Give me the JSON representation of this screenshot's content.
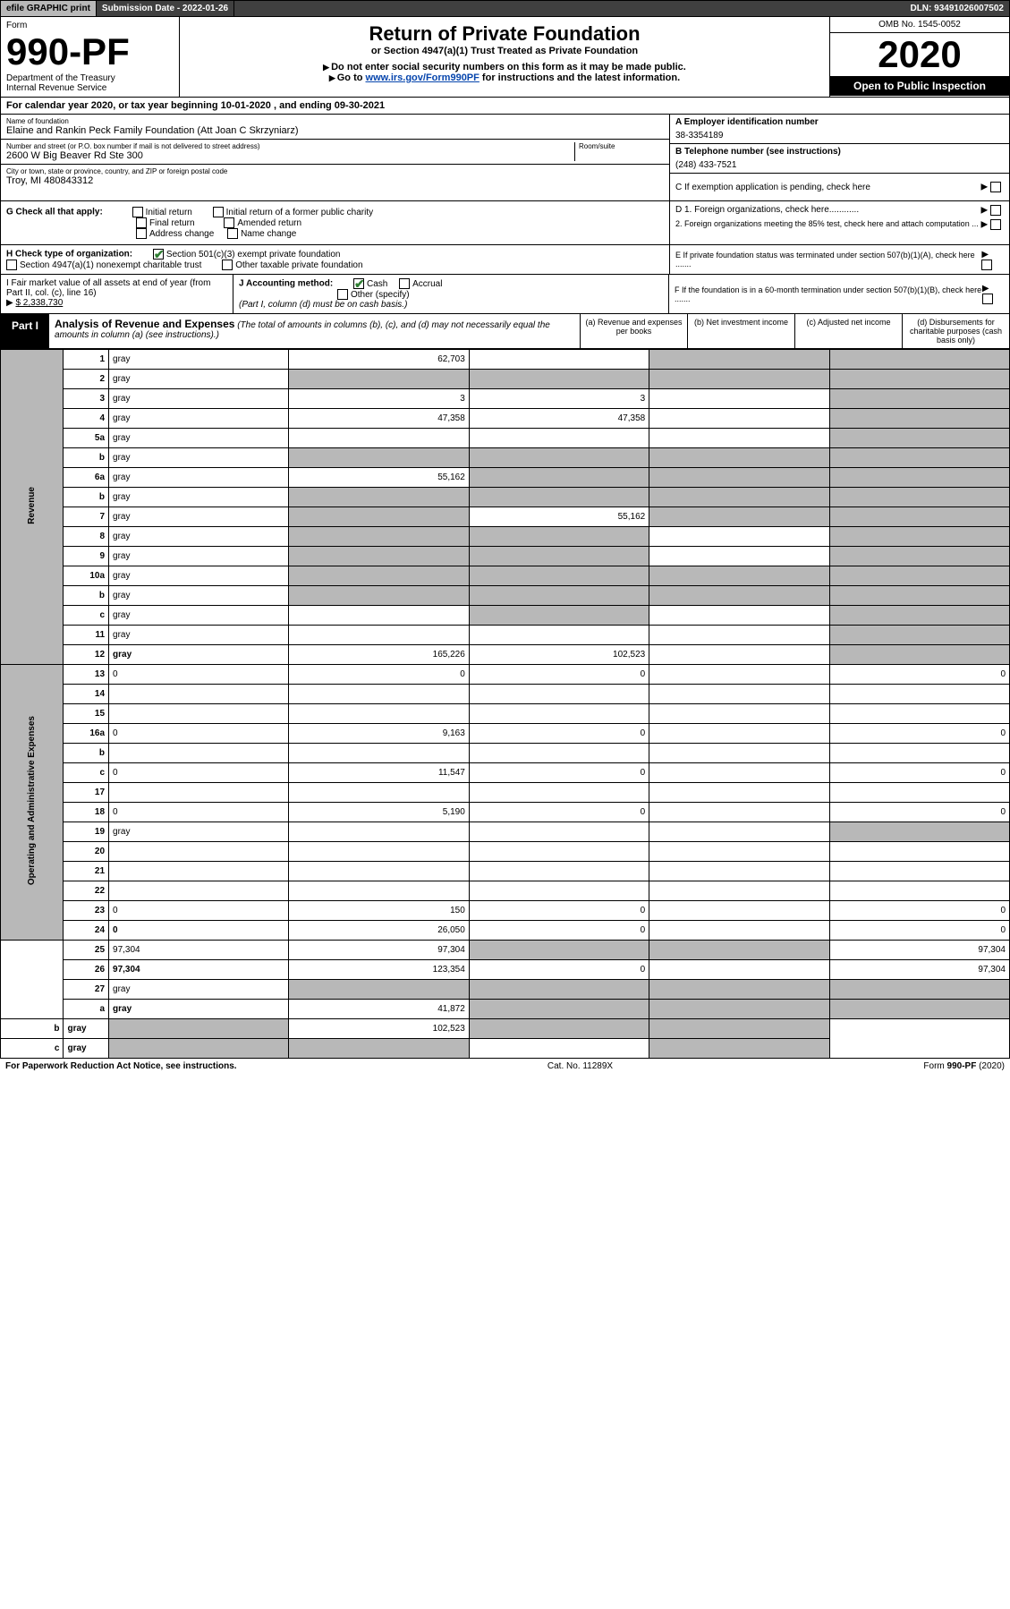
{
  "topbar": {
    "efile": "efile GRAPHIC print",
    "sub_lbl": "Submission Date - 2022-01-26",
    "dln": "DLN: 93491026007502"
  },
  "hdr": {
    "form_word": "Form",
    "form_num": "990-PF",
    "dept": "Department of the Treasury",
    "irs": "Internal Revenue Service",
    "title": "Return of Private Foundation",
    "subtitle": "or Section 4947(a)(1) Trust Treated as Private Foundation",
    "warn1": "Do not enter social security numbers on this form as it may be made public.",
    "warn2_a": "Go to ",
    "warn2_link": "www.irs.gov/Form990PF",
    "warn2_b": " for instructions and the latest information.",
    "omb": "OMB No. 1545-0052",
    "year": "2020",
    "inspect": "Open to Public Inspection"
  },
  "cal": "For calendar year 2020, or tax year beginning 10-01-2020             , and ending 09-30-2021",
  "name_lbl": "Name of foundation",
  "name_val": "Elaine and Rankin Peck Family Foundation (Att Joan C Skrzyniarz)",
  "ein_lbl": "A Employer identification number",
  "ein_val": "38-3354189",
  "addr_lbl": "Number and street (or P.O. box number if mail is not delivered to street address)",
  "addr_val": "2600 W Big Beaver Rd Ste 300",
  "room_lbl": "Room/suite",
  "tel_lbl": "B Telephone number (see instructions)",
  "tel_val": "(248) 433-7521",
  "city_lbl": "City or town, state or province, country, and ZIP or foreign postal code",
  "city_val": "Troy, MI  480843312",
  "c_lbl": "C If exemption application is pending, check here",
  "g_lbl": "G Check all that apply:",
  "g_opts": [
    "Initial return",
    "Initial return of a former public charity",
    "Final return",
    "Amended return",
    "Address change",
    "Name change"
  ],
  "d1": "D 1. Foreign organizations, check here............",
  "d2": "2. Foreign organizations meeting the 85% test, check here and attach computation ...",
  "e_lbl": "E  If private foundation status was terminated under section 507(b)(1)(A), check here .......",
  "h_lbl": "H Check type of organization:",
  "h1": "Section 501(c)(3) exempt private foundation",
  "h2": "Section 4947(a)(1) nonexempt charitable trust",
  "h3": "Other taxable private foundation",
  "i_lbl": "I Fair market value of all assets at end of year (from Part II, col. (c), line 16)",
  "i_val": "$  2,338,730",
  "j_lbl": "J Accounting method:",
  "j1": "Cash",
  "j2": "Accrual",
  "j3": "Other (specify)",
  "j_note": "(Part I, column (d) must be on cash basis.)",
  "f_lbl": "F  If the foundation is in a 60-month termination under section 507(b)(1)(B), check here .......",
  "part1_tag": "Part I",
  "part1_title": "Analysis of Revenue and Expenses",
  "part1_desc": "(The total of amounts in columns (b), (c), and (d) may not necessarily equal the amounts in column (a) (see instructions).)",
  "cols": {
    "a": "(a) Revenue and expenses per books",
    "b": "(b) Net investment income",
    "c": "(c) Adjusted net income",
    "d": "(d) Disbursements for charitable purposes (cash basis only)"
  },
  "side_rev": "Revenue",
  "side_op": "Operating and Administrative Expenses",
  "rows": [
    {
      "n": "1",
      "d": "gray",
      "a": "62,703",
      "b": "",
      "c": "gray"
    },
    {
      "n": "2",
      "d": "gray",
      "a": "gray",
      "b": "gray",
      "c": "gray"
    },
    {
      "n": "3",
      "d": "gray",
      "a": "3",
      "b": "3",
      "c": ""
    },
    {
      "n": "4",
      "d": "gray",
      "a": "47,358",
      "b": "47,358",
      "c": ""
    },
    {
      "n": "5a",
      "d": "gray",
      "a": "",
      "b": "",
      "c": ""
    },
    {
      "n": "b",
      "d": "gray",
      "a": "gray",
      "b": "gray",
      "c": "gray"
    },
    {
      "n": "6a",
      "d": "gray",
      "a": "55,162",
      "b": "gray",
      "c": "gray"
    },
    {
      "n": "b",
      "d": "gray",
      "a": "gray",
      "b": "gray",
      "c": "gray"
    },
    {
      "n": "7",
      "d": "gray",
      "a": "gray",
      "b": "55,162",
      "c": "gray"
    },
    {
      "n": "8",
      "d": "gray",
      "a": "gray",
      "b": "gray",
      "c": ""
    },
    {
      "n": "9",
      "d": "gray",
      "a": "gray",
      "b": "gray",
      "c": ""
    },
    {
      "n": "10a",
      "d": "gray",
      "a": "gray",
      "b": "gray",
      "c": "gray"
    },
    {
      "n": "b",
      "d": "gray",
      "a": "gray",
      "b": "gray",
      "c": "gray"
    },
    {
      "n": "c",
      "d": "gray",
      "a": "",
      "b": "gray",
      "c": ""
    },
    {
      "n": "11",
      "d": "gray",
      "a": "",
      "b": "",
      "c": ""
    },
    {
      "n": "12",
      "d": "gray",
      "a": "165,226",
      "b": "102,523",
      "c": "",
      "bold": true
    },
    {
      "n": "13",
      "d": "0",
      "a": "0",
      "b": "0",
      "c": ""
    },
    {
      "n": "14",
      "d": "",
      "a": "",
      "b": "",
      "c": ""
    },
    {
      "n": "15",
      "d": "",
      "a": "",
      "b": "",
      "c": ""
    },
    {
      "n": "16a",
      "d": "0",
      "a": "9,163",
      "b": "0",
      "c": ""
    },
    {
      "n": "b",
      "d": "",
      "a": "",
      "b": "",
      "c": ""
    },
    {
      "n": "c",
      "d": "0",
      "a": "11,547",
      "b": "0",
      "c": ""
    },
    {
      "n": "17",
      "d": "",
      "a": "",
      "b": "",
      "c": ""
    },
    {
      "n": "18",
      "d": "0",
      "a": "5,190",
      "b": "0",
      "c": ""
    },
    {
      "n": "19",
      "d": "gray",
      "a": "",
      "b": "",
      "c": ""
    },
    {
      "n": "20",
      "d": "",
      "a": "",
      "b": "",
      "c": ""
    },
    {
      "n": "21",
      "d": "",
      "a": "",
      "b": "",
      "c": ""
    },
    {
      "n": "22",
      "d": "",
      "a": "",
      "b": "",
      "c": ""
    },
    {
      "n": "23",
      "d": "0",
      "a": "150",
      "b": "0",
      "c": ""
    },
    {
      "n": "24",
      "d": "0",
      "a": "26,050",
      "b": "0",
      "c": "",
      "bold": true
    },
    {
      "n": "25",
      "d": "97,304",
      "a": "97,304",
      "b": "gray",
      "c": "gray"
    },
    {
      "n": "26",
      "d": "97,304",
      "a": "123,354",
      "b": "0",
      "c": "",
      "bold": true
    },
    {
      "n": "27",
      "d": "gray",
      "a": "gray",
      "b": "gray",
      "c": "gray"
    },
    {
      "n": "a",
      "d": "gray",
      "a": "41,872",
      "b": "gray",
      "c": "gray",
      "bold": true
    },
    {
      "n": "b",
      "d": "gray",
      "a": "gray",
      "b": "102,523",
      "c": "gray",
      "bold": true
    },
    {
      "n": "c",
      "d": "gray",
      "a": "gray",
      "b": "gray",
      "c": "",
      "bold": true
    }
  ],
  "ftr": {
    "l": "For Paperwork Reduction Act Notice, see instructions.",
    "c": "Cat. No. 11289X",
    "r": "Form 990-PF (2020)"
  }
}
